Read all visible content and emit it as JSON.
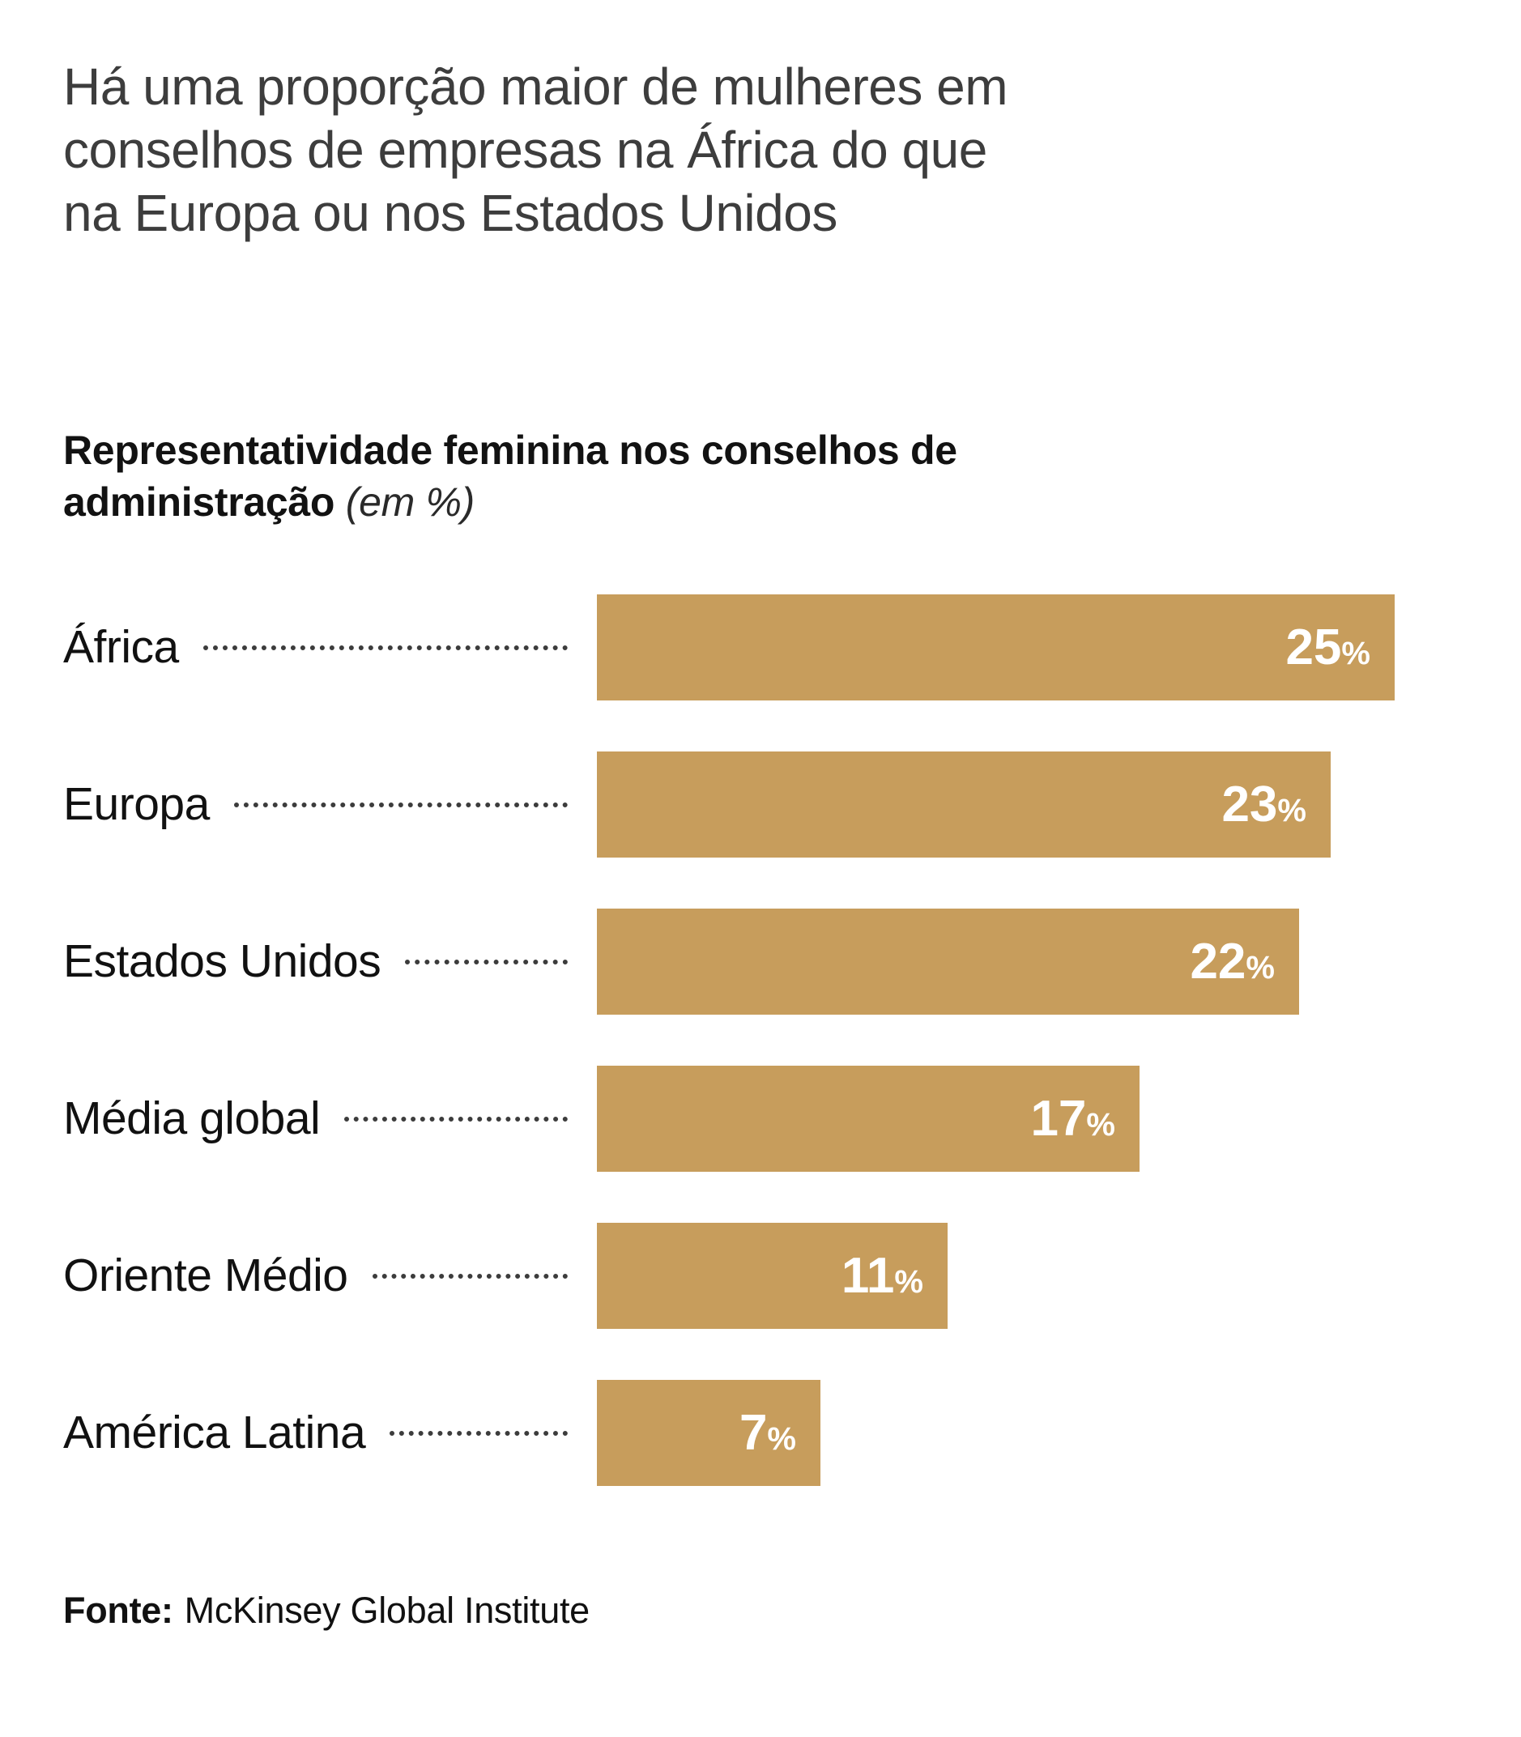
{
  "header": {
    "title": "Há uma proporção maior de mulheres em conselhos de empresas na África do que na Europa ou nos Estados Unidos",
    "subtitle": "Representatividade feminina nos conselhos de administração",
    "unit_note": "(em %)"
  },
  "chart_data": {
    "type": "bar",
    "orientation": "horizontal",
    "title": "Representatividade feminina nos conselhos de administração (em %)",
    "categories": [
      "África",
      "Europa",
      "Estados Unidos",
      "Média global",
      "Oriente Médio",
      "América Latina"
    ],
    "values": [
      25,
      23,
      22,
      17,
      11,
      7
    ],
    "unit": "%",
    "xlim": [
      0,
      25
    ],
    "grid": false,
    "legend": false,
    "bar_color": "#C79D5C",
    "value_label_color": "#FFFFFF",
    "leader_line_color": "#3C3C3C"
  },
  "footer": {
    "source_label": "Fonte:",
    "source_value": "McKinsey Global Institute"
  }
}
